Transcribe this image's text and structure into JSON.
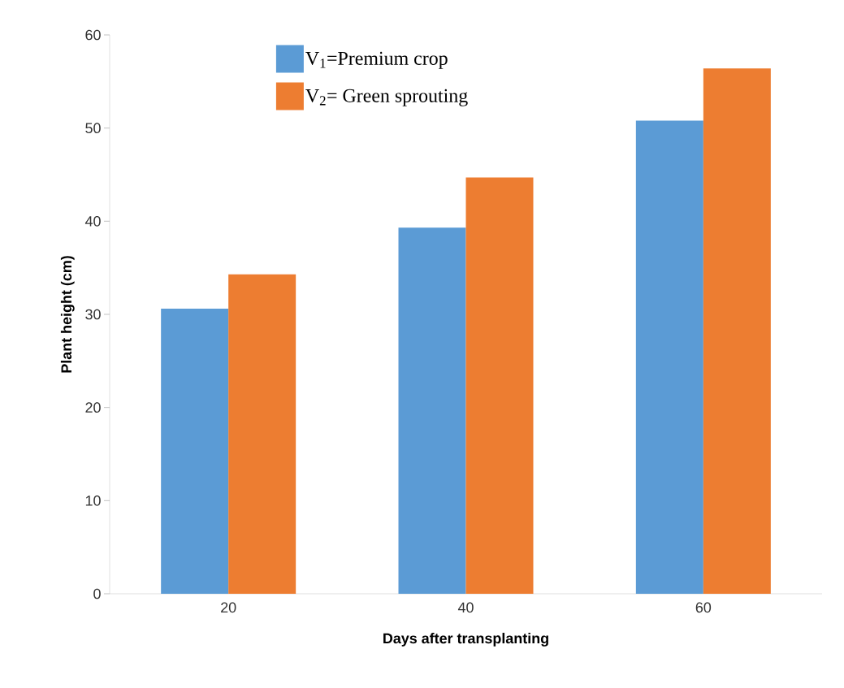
{
  "chart_data": {
    "type": "bar",
    "xlabel": "Days after transplanting",
    "ylabel": "Plant height (cm)",
    "categories": [
      "20",
      "40",
      "60"
    ],
    "series": [
      {
        "name": "V$_{1}$=Premium crop",
        "color": "#5b9bd5",
        "values": [
          30.6,
          39.3,
          50.8
        ]
      },
      {
        "name": "V$_{2}$= Green sprouting",
        "color": "#ed7d31",
        "values": [
          34.3,
          44.7,
          56.4
        ]
      }
    ],
    "ylim": [
      0,
      60
    ],
    "yticks": [
      0,
      10,
      20,
      30,
      40,
      50,
      60
    ],
    "grid": false,
    "legend": "top"
  }
}
